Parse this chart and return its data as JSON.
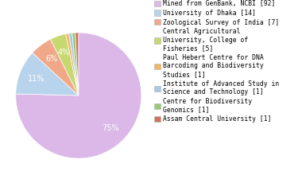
{
  "labels": [
    "Mined from GenBank, NCBI [92]",
    "University of Dhaka [14]",
    "Zoological Survey of India [7]",
    "Central Agricultural\nUniversity, College of\nFisheries [5]",
    "Paul Hebert Centre for DNA\nBarcoding and Biodiversity\nStudies [1]",
    "Institute of Advanced Study in\nScience and Technology [1]",
    "Centre for Biodiversity\nGenomics [1]",
    "Assam Central University [1]"
  ],
  "values": [
    92,
    14,
    7,
    5,
    1,
    1,
    1,
    1
  ],
  "colors": [
    "#dbb8e8",
    "#b8d4ec",
    "#f0a888",
    "#c8d870",
    "#f0b860",
    "#a8c8e8",
    "#98c870",
    "#d07060"
  ],
  "pct_fontsize": 7,
  "legend_fontsize": 5.8,
  "figsize": [
    3.8,
    2.4
  ],
  "dpi": 100
}
